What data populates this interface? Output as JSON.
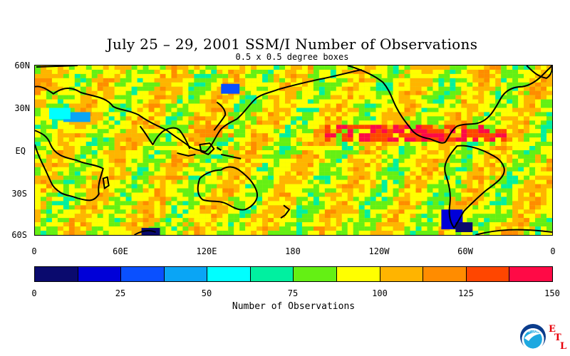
{
  "title": "July 25 – 29, 2001 SSM/I Number of Observations",
  "subtitle": "0.5 x 0.5 degree boxes",
  "lat_labels": [
    "60N",
    "30N",
    "EQ",
    "30S",
    "60S"
  ],
  "lon_labels": [
    "0",
    "60E",
    "120E",
    "180",
    "120W",
    "60W",
    "0"
  ],
  "colorbar": {
    "title": "Number of Observations",
    "tick_labels": [
      "0",
      "25",
      "50",
      "75",
      "100",
      "125",
      "150"
    ],
    "colors": [
      "#0a0a6e",
      "#0000d8",
      "#0a50ff",
      "#0aa5f5",
      "#00ffff",
      "#00f0a0",
      "#64f014",
      "#ffff00",
      "#ffb400",
      "#ff8c00",
      "#ff4600",
      "#ff0a46"
    ]
  },
  "logo": {
    "icon": "noaa-logo-icon",
    "text": "NOAA",
    "org_letters": [
      "E",
      "T",
      "L"
    ]
  },
  "chart_data": {
    "type": "heatmap",
    "title": "July 25 – 29, 2001 SSM/I Number of Observations",
    "subtitle": "0.5 x 0.5 degree boxes",
    "x_ticks": [
      "0",
      "60E",
      "120E",
      "180",
      "120W",
      "60W",
      "0"
    ],
    "y_ticks": [
      "60N",
      "30N",
      "EQ",
      "30S",
      "60S"
    ],
    "lat_range": [
      -60,
      60
    ],
    "lon_range": [
      0,
      360
    ],
    "value_range": [
      0,
      150
    ],
    "colorbar_label": "Number of Observations"
  }
}
